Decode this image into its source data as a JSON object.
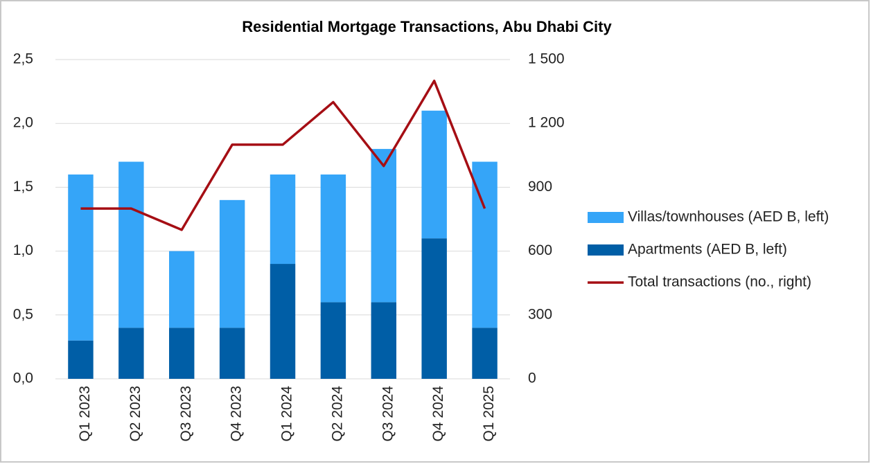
{
  "chart_data": {
    "type": "bar",
    "title": "Residential Mortgage Transactions, Abu Dhabi City",
    "categories": [
      "Q1 2023",
      "Q2 2023",
      "Q3 2023",
      "Q4 2023",
      "Q1 2024",
      "Q2 2024",
      "Q3 2024",
      "Q4 2024",
      "Q1 2025"
    ],
    "series": [
      {
        "name": "Villas/townhouses (AED B, left)",
        "color": "#35a5f8",
        "type": "bar",
        "values": [
          1.3,
          1.3,
          0.6,
          1.0,
          0.7,
          1.0,
          1.2,
          1.0,
          1.3
        ]
      },
      {
        "name": "Apartments (AED B, left)",
        "color": "#005ea6",
        "type": "bar",
        "values": [
          0.3,
          0.4,
          0.4,
          0.4,
          0.9,
          0.6,
          0.6,
          1.1,
          0.4
        ]
      },
      {
        "name": "Total transactions (no., right)",
        "color": "#a50e14",
        "type": "line",
        "axis": "y2",
        "values": [
          800,
          800,
          700,
          1100,
          1100,
          1300,
          1000,
          1400,
          800
        ]
      }
    ],
    "stacked": true,
    "ylim": [
      0,
      2.5
    ],
    "yticks": [
      {
        "value": 0,
        "label": "0,0"
      },
      {
        "value": 0.5,
        "label": "0,5"
      },
      {
        "value": 1,
        "label": "1,0"
      },
      {
        "value": 1.5,
        "label": "1,5"
      },
      {
        "value": 2,
        "label": "2,0"
      },
      {
        "value": 2.5,
        "label": "2,5"
      }
    ],
    "y2lim": [
      0,
      1500
    ],
    "y2ticks": [
      0,
      300,
      600,
      900,
      {
        "value": 1200,
        "label": "1 200"
      },
      {
        "value": 1500,
        "label": "1 500"
      }
    ],
    "grid": true,
    "legend": "right"
  }
}
